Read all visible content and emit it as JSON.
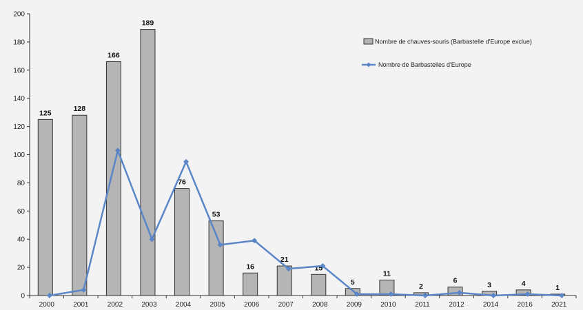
{
  "chart_data": {
    "type": "bar",
    "categories": [
      "2000",
      "2001",
      "2002",
      "2003",
      "2004",
      "2005",
      "2006",
      "2007",
      "2008",
      "2009",
      "2010",
      "2011",
      "2012",
      "2014",
      "2016",
      "2021"
    ],
    "y_ticks": [
      "0",
      "20",
      "40",
      "60",
      "80",
      "100",
      "120",
      "140",
      "160",
      "180",
      "200"
    ],
    "ylim": [
      0,
      200
    ],
    "grid": false,
    "legend_position": "top-right",
    "series": [
      {
        "name": "Nombre de chauves-souris (Barbastelle d'Europe exclue)",
        "kind": "bar",
        "color": "#b5b5b5",
        "values": [
          125,
          128,
          166,
          189,
          76,
          53,
          16,
          21,
          15,
          5,
          11,
          2,
          6,
          3,
          4,
          1
        ],
        "labels": [
          "125",
          "128",
          "166",
          "189",
          "76",
          "53",
          "16",
          "21",
          "15",
          "5",
          "11",
          "2",
          "6",
          "3",
          "4",
          "1"
        ]
      },
      {
        "name": "Nombre de Barbastelles d'Europe",
        "kind": "line",
        "color": "#5a86c8",
        "values": [
          0,
          4,
          103,
          40,
          95,
          36,
          39,
          19,
          21,
          1,
          1,
          0,
          2,
          0,
          1,
          0
        ]
      }
    ]
  }
}
